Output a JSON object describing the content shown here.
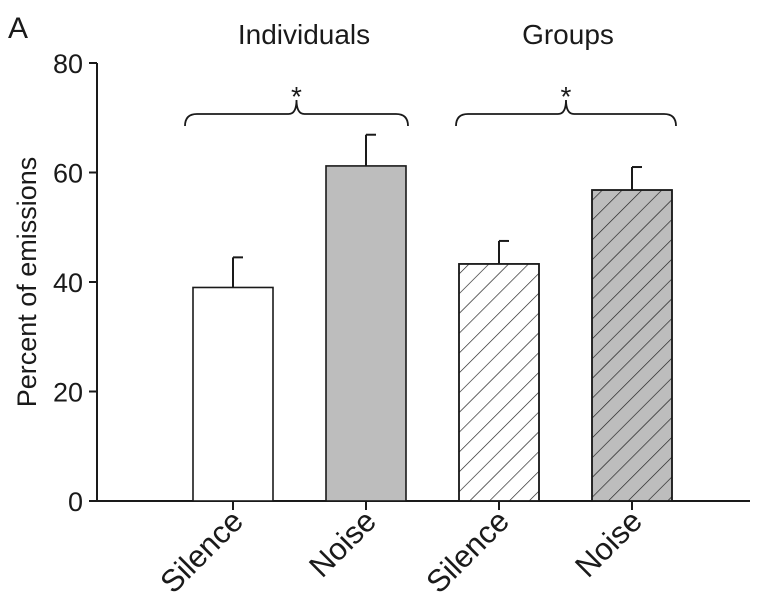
{
  "panel_label": "A",
  "chart_data": {
    "type": "bar",
    "title": "",
    "xlabel": "",
    "ylabel": "Percent of emissions",
    "ylim": [
      0,
      80
    ],
    "yticks": [
      "0",
      "20",
      "40",
      "60",
      "80"
    ],
    "groups": [
      {
        "label": "Individuals",
        "significance": "*"
      },
      {
        "label": "Groups",
        "significance": "*"
      }
    ],
    "categories": [
      "Silence",
      "Noise",
      "Silence",
      "Noise"
    ],
    "values": [
      39,
      61.2,
      43.3,
      56.8
    ],
    "errors": [
      5.5,
      5.7,
      4.2,
      4.2
    ],
    "fills": [
      {
        "color": "#ffffff",
        "hatch": false
      },
      {
        "color": "#bdbdbd",
        "hatch": false
      },
      {
        "color": "#ffffff",
        "hatch": true
      },
      {
        "color": "#bdbdbd",
        "hatch": true
      }
    ],
    "grid": false
  }
}
